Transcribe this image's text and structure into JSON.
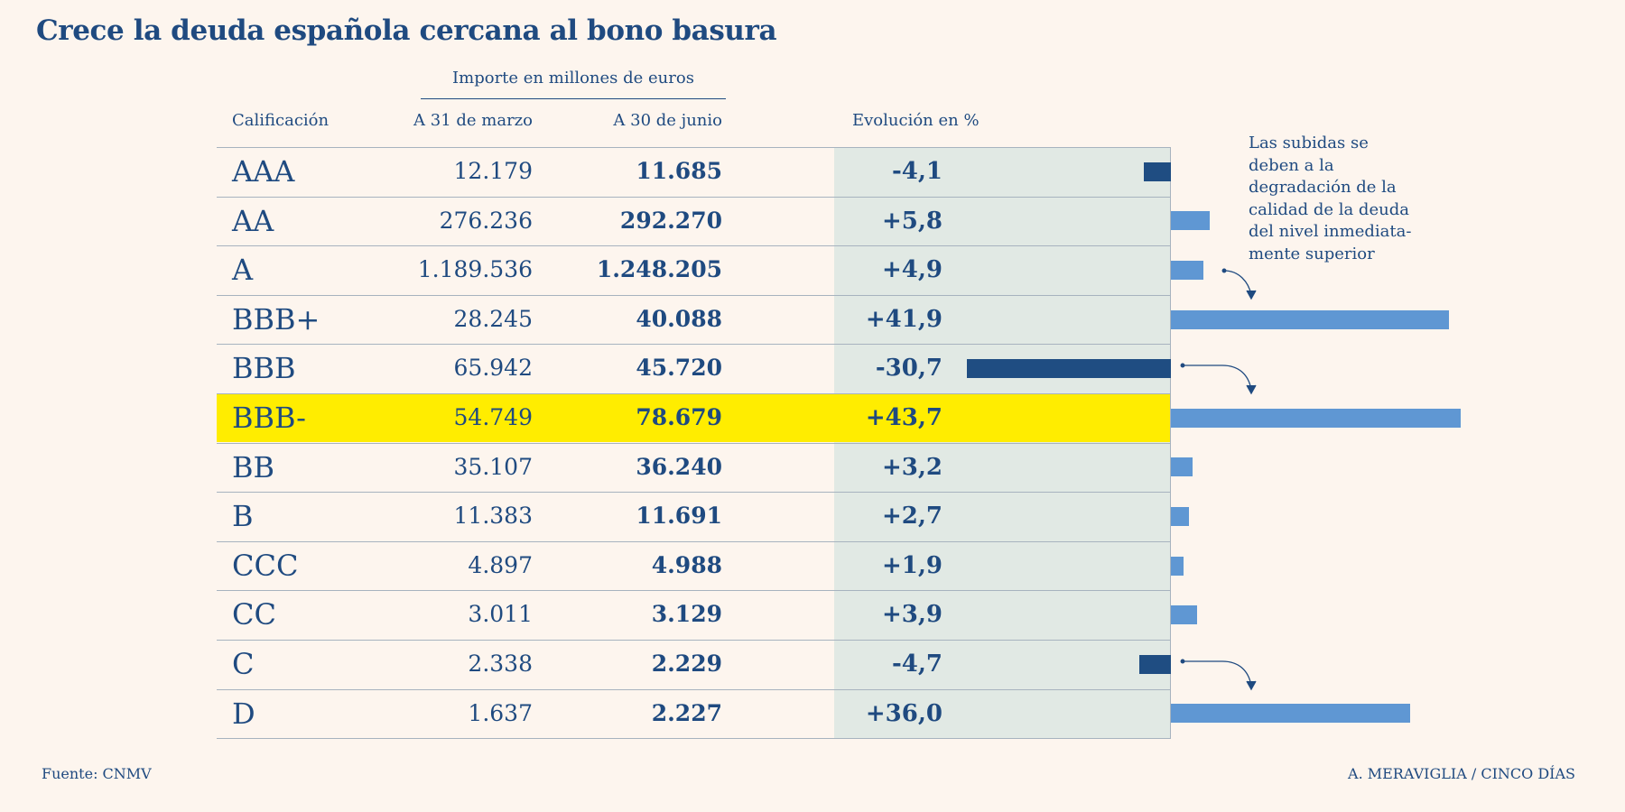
{
  "title": "Crece la deuda española cercana al bono basura",
  "headers": {
    "group": "Importe en millones de euros",
    "rating": "Calificación",
    "march": "A 31 de marzo",
    "june": "A 30 de  junio",
    "evolution": "Evolución en %"
  },
  "rows": [
    {
      "rating": "AAA",
      "march": "12.179",
      "june": "11.685",
      "evol_label": "-4,1"
    },
    {
      "rating": "AA",
      "march": "276.236",
      "june": "292.270",
      "evol_label": "+5,8"
    },
    {
      "rating": "A",
      "march": "1.189.536",
      "june": "1.248.205",
      "evol_label": "+4,9"
    },
    {
      "rating": "BBB+",
      "march": "28.245",
      "june": "40.088",
      "evol_label": "+41,9"
    },
    {
      "rating": "BBB",
      "march": "65.942",
      "june": "45.720",
      "evol_label": "-30,7"
    },
    {
      "rating": "BBB-",
      "march": "54.749",
      "june": "78.679",
      "evol_label": "+43,7",
      "highlighted": true
    },
    {
      "rating": "BB",
      "march": "35.107",
      "june": "36.240",
      "evol_label": "+3,2"
    },
    {
      "rating": "B",
      "march": "11.383",
      "june": "11.691",
      "evol_label": "+2,7"
    },
    {
      "rating": "CCC",
      "march": "4.897",
      "june": "4.988",
      "evol_label": "+1,9"
    },
    {
      "rating": "CC",
      "march": "3.011",
      "june": "3.129",
      "evol_label": "+3,9"
    },
    {
      "rating": "C",
      "march": "2.338",
      "june": "2.229",
      "evol_label": "-4,7"
    },
    {
      "rating": "D",
      "march": "1.637",
      "june": "2.227",
      "evol_label": "+36,0"
    }
  ],
  "annotation": "Las subidas se deben a la degradación de la calidad de la deuda del nivel inmediata-mente superior",
  "annotation_lines": [
    "Las subidas se",
    "deben a la",
    "degradación de la",
    "calidad de la deuda",
    "del nivel inmediata-",
    "mente superior"
  ],
  "source": "Fuente: CNMV",
  "credit": "A. MERAVIGLIA / CINCO DÍAS",
  "colors": {
    "background": "#fdf5ee",
    "text": "#1f4a80",
    "positive_bar": "#5f97d3",
    "negative_bar": "#1f4d82",
    "highlight": "#ffed00",
    "evolution_band": "#e1e9e4"
  },
  "chart_data": {
    "type": "bar",
    "orientation": "horizontal",
    "categories": [
      "AAA",
      "AA",
      "A",
      "BBB+",
      "BBB",
      "BBB-",
      "BB",
      "B",
      "CCC",
      "CC",
      "C",
      "D"
    ],
    "series": [
      {
        "name": "A 31 de marzo",
        "values": [
          12179,
          276236,
          1189536,
          28245,
          65942,
          54749,
          35107,
          11383,
          4897,
          3011,
          2338,
          1637
        ]
      },
      {
        "name": "A 30 de  junio",
        "values": [
          11685,
          292270,
          1248205,
          40088,
          45720,
          78679,
          36240,
          11691,
          4988,
          3129,
          2229,
          2227
        ]
      },
      {
        "name": "Evolución en %",
        "values": [
          -4.1,
          5.8,
          4.9,
          41.9,
          -30.7,
          43.7,
          3.2,
          2.7,
          1.9,
          3.9,
          -4.7,
          36.0
        ]
      }
    ],
    "bar_series": "Evolución en %",
    "title": "Crece la deuda española cercana al bono basura",
    "xlabel": "",
    "ylabel": "",
    "grid": false,
    "legend": "none"
  }
}
